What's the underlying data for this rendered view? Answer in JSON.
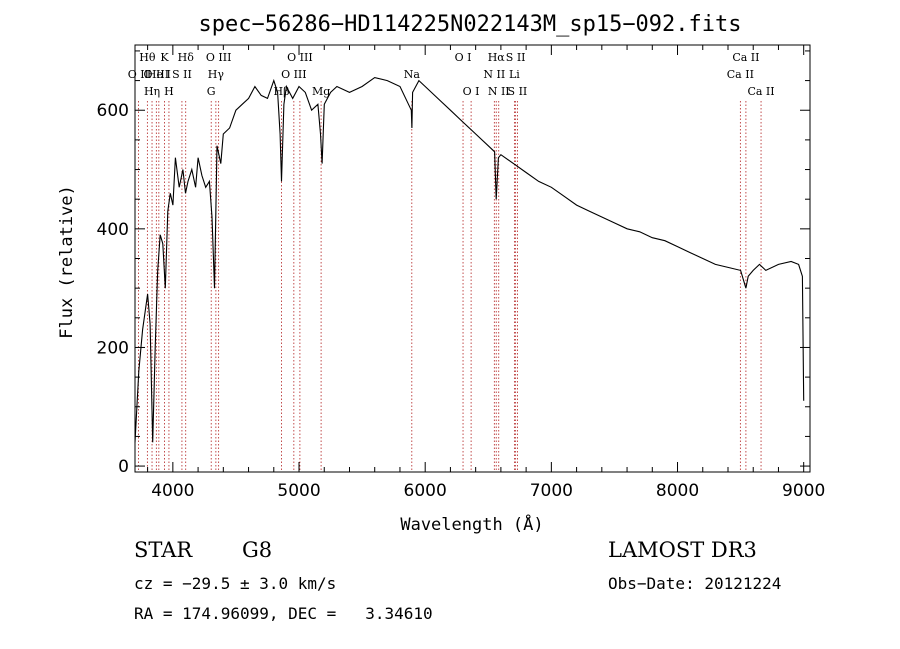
{
  "chart_data": {
    "type": "line",
    "title": "spec−56286−HD114225N022143M_sp15−092.fits",
    "xlabel": "Wavelength (Å)",
    "ylabel": "Flux (relative)",
    "xlim": [
      3700,
      9050
    ],
    "ylim": [
      -10,
      710
    ],
    "xticks": [
      4000,
      5000,
      6000,
      7000,
      8000,
      9000
    ],
    "yticks": [
      0,
      200,
      400,
      600
    ],
    "grid": false,
    "series": [
      {
        "color": "#000000",
        "x": [
          3700,
          3730,
          3760,
          3780,
          3800,
          3820,
          3840,
          3860,
          3880,
          3900,
          3920,
          3940,
          3960,
          3980,
          4000,
          4020,
          4050,
          4080,
          4100,
          4120,
          4150,
          4180,
          4200,
          4230,
          4260,
          4290,
          4310,
          4330,
          4350,
          4380,
          4400,
          4450,
          4500,
          4550,
          4600,
          4650,
          4700,
          4750,
          4800,
          4830,
          4850,
          4861,
          4880,
          4900,
          4950,
          5000,
          5050,
          5100,
          5150,
          5170,
          5183,
          5200,
          5250,
          5300,
          5400,
          5500,
          5600,
          5700,
          5800,
          5890,
          5895,
          5900,
          5950,
          6000,
          6100,
          6200,
          6300,
          6400,
          6500,
          6550,
          6563,
          6580,
          6600,
          6700,
          6800,
          6900,
          7000,
          7100,
          7200,
          7300,
          7400,
          7500,
          7600,
          7700,
          7800,
          7900,
          8000,
          8100,
          8200,
          8300,
          8400,
          8500,
          8542,
          8560,
          8600,
          8650,
          8700,
          8800,
          8900,
          8960,
          8990,
          9000
        ],
        "y": [
          40,
          160,
          230,
          260,
          290,
          240,
          40,
          200,
          330,
          390,
          375,
          300,
          430,
          460,
          440,
          520,
          470,
          500,
          460,
          480,
          500,
          470,
          520,
          490,
          470,
          480,
          420,
          300,
          540,
          510,
          560,
          570,
          600,
          610,
          620,
          640,
          625,
          620,
          650,
          630,
          560,
          480,
          610,
          640,
          620,
          640,
          630,
          600,
          610,
          560,
          510,
          610,
          630,
          640,
          630,
          640,
          655,
          650,
          640,
          600,
          570,
          630,
          650,
          640,
          620,
          600,
          580,
          560,
          540,
          530,
          450,
          520,
          525,
          510,
          495,
          480,
          470,
          455,
          440,
          430,
          420,
          410,
          400,
          395,
          385,
          380,
          370,
          360,
          350,
          340,
          335,
          330,
          300,
          320,
          330,
          340,
          330,
          340,
          345,
          340,
          320,
          110
        ]
      }
    ],
    "spectral_lines": [
      {
        "label": "O II",
        "wavelength": 3727,
        "row": 1
      },
      {
        "label": "Hθ",
        "wavelength": 3798,
        "row": 0
      },
      {
        "label": "O III",
        "wavelength": 3869,
        "row": 1
      },
      {
        "label": "Hη",
        "wavelength": 3835,
        "row": 2
      },
      {
        "label": "He I",
        "wavelength": 3889,
        "row": 1
      },
      {
        "label": "K",
        "wavelength": 3934,
        "row": 0
      },
      {
        "label": "H",
        "wavelength": 3969,
        "row": 2
      },
      {
        "label": "S II",
        "wavelength": 4072,
        "row": 1
      },
      {
        "label": "Hδ",
        "wavelength": 4102,
        "row": 0
      },
      {
        "label": "G",
        "wavelength": 4304,
        "row": 2
      },
      {
        "label": "Hγ",
        "wavelength": 4341,
        "row": 1
      },
      {
        "label": "O III",
        "wavelength": 4363,
        "row": 0
      },
      {
        "label": "Hβ",
        "wavelength": 4861,
        "row": 2
      },
      {
        "label": "O III",
        "wavelength": 4959,
        "row": 1
      },
      {
        "label": "O III",
        "wavelength": 5007,
        "row": 0
      },
      {
        "label": "Mg",
        "wavelength": 5175,
        "row": 2
      },
      {
        "label": "Na",
        "wavelength": 5894,
        "row": 1
      },
      {
        "label": "O I",
        "wavelength": 6300,
        "row": 0
      },
      {
        "label": "O I",
        "wavelength": 6364,
        "row": 2
      },
      {
        "label": "N II",
        "wavelength": 6548,
        "row": 1
      },
      {
        "label": "Hα",
        "wavelength": 6563,
        "row": 0
      },
      {
        "label": "N II",
        "wavelength": 6583,
        "row": 2
      },
      {
        "label": "S II",
        "wavelength": 6717,
        "row": 0
      },
      {
        "label": "Li",
        "wavelength": 6707,
        "row": 1
      },
      {
        "label": "S II",
        "wavelength": 6731,
        "row": 2
      },
      {
        "label": "Ca II",
        "wavelength": 8498,
        "row": 1
      },
      {
        "label": "Ca II",
        "wavelength": 8542,
        "row": 0
      },
      {
        "label": "Ca II",
        "wavelength": 8662,
        "row": 2
      }
    ]
  },
  "info": {
    "object_class": "STAR",
    "subclass": "G8",
    "survey": "LAMOST DR3",
    "cz": "cz = −29.5 ± 3.0 km/s",
    "obs_date": "Obs−Date: 20121224",
    "coords": "RA = 174.96099, DEC =   3.34610"
  }
}
